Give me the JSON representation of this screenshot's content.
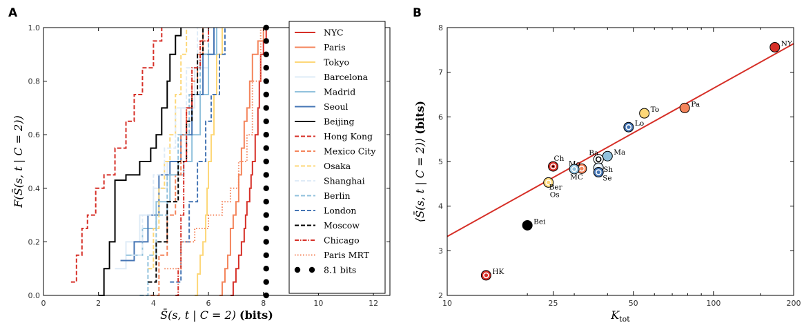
{
  "panels": {
    "a": "A",
    "b": "B"
  },
  "chart_data": [
    {
      "type": "line",
      "panel": "A",
      "xlabel_main": "S̄(s, t | C = 2)",
      "xlabel_unit": "(bits)",
      "ylabel": "F(S̄(s, t | C = 2))",
      "xlim": [
        0,
        12.6
      ],
      "ylim": [
        0,
        1.0
      ],
      "xticks": [
        "0",
        "2",
        "4",
        "6",
        "8",
        "10",
        "12"
      ],
      "yticks": [
        "0.0",
        "0.2",
        "0.4",
        "0.6",
        "0.8",
        "1.0"
      ],
      "legend_position": "inside-right",
      "series": [
        {
          "name": "NYC",
          "color": "#d62f27",
          "dash": "solid",
          "x": [
            6.8,
            6.9,
            7.0,
            7.1,
            7.2,
            7.3,
            7.35,
            7.4,
            7.5,
            7.55,
            7.6,
            7.7,
            7.8,
            7.85,
            7.9,
            8.0,
            8.1
          ],
          "y": [
            0,
            0.05,
            0.1,
            0.15,
            0.2,
            0.25,
            0.3,
            0.35,
            0.4,
            0.45,
            0.5,
            0.6,
            0.7,
            0.8,
            0.9,
            0.95,
            1.0
          ]
        },
        {
          "name": "Paris",
          "color": "#f4845b",
          "dash": "solid",
          "x": [
            6.4,
            6.5,
            6.6,
            6.7,
            6.8,
            6.9,
            7.0,
            7.1,
            7.2,
            7.3,
            7.4,
            7.5,
            7.6,
            7.8,
            8.0
          ],
          "y": [
            0,
            0.05,
            0.1,
            0.15,
            0.25,
            0.3,
            0.35,
            0.45,
            0.55,
            0.65,
            0.7,
            0.8,
            0.9,
            0.95,
            1.0
          ]
        },
        {
          "name": "Tokyo",
          "color": "#fdd777",
          "dash": "solid",
          "x": [
            5.5,
            5.6,
            5.7,
            5.8,
            5.9,
            5.95,
            6.0,
            6.1,
            6.2,
            6.3,
            6.5
          ],
          "y": [
            0,
            0.08,
            0.15,
            0.2,
            0.3,
            0.4,
            0.5,
            0.6,
            0.75,
            0.9,
            1.0
          ]
        },
        {
          "name": "Barcelona",
          "color": "#deebf7",
          "dash": "solid",
          "x": [
            2.6,
            3.0,
            3.5,
            4.0,
            4.5,
            5.0,
            5.5,
            6.0
          ],
          "y": [
            0.1,
            0.2,
            0.3,
            0.4,
            0.5,
            0.7,
            0.85,
            1.0
          ]
        },
        {
          "name": "Madrid",
          "color": "#91c1dc",
          "dash": "solid",
          "x": [
            3.0,
            3.6,
            4.1,
            4.6,
            5.1,
            5.4,
            5.7,
            6.0,
            6.3
          ],
          "y": [
            0.15,
            0.25,
            0.35,
            0.45,
            0.5,
            0.6,
            0.75,
            0.9,
            1.0
          ]
        },
        {
          "name": "Seoul",
          "color": "#4575b4",
          "dash": "solid",
          "x": [
            2.8,
            3.3,
            3.8,
            4.2,
            4.6,
            5.0,
            5.4,
            5.8,
            6.2
          ],
          "y": [
            0.13,
            0.2,
            0.3,
            0.45,
            0.5,
            0.6,
            0.75,
            0.9,
            1.0
          ]
        },
        {
          "name": "Beijing",
          "color": "#000000",
          "dash": "solid",
          "x": [
            2.0,
            2.2,
            2.4,
            2.6,
            3.0,
            3.5,
            3.9,
            4.1,
            4.3,
            4.5,
            4.6,
            4.8,
            5.0
          ],
          "y": [
            0,
            0.1,
            0.2,
            0.43,
            0.45,
            0.5,
            0.55,
            0.6,
            0.7,
            0.8,
            0.9,
            0.97,
            1.0
          ]
        },
        {
          "name": "Hong Kong",
          "color": "#d62f27",
          "dash": "dashed",
          "x": [
            1.0,
            1.2,
            1.4,
            1.6,
            1.9,
            2.2,
            2.6,
            3.0,
            3.3,
            3.6,
            4.0,
            4.3
          ],
          "y": [
            0.05,
            0.15,
            0.25,
            0.3,
            0.4,
            0.45,
            0.55,
            0.65,
            0.75,
            0.85,
            0.95,
            1.0
          ]
        },
        {
          "name": "Mexico City",
          "color": "#f4845b",
          "dash": "dashed",
          "x": [
            3.9,
            4.2,
            4.5,
            4.8,
            5.0,
            5.2,
            5.4,
            5.6,
            5.8
          ],
          "y": [
            0,
            0.15,
            0.3,
            0.45,
            0.6,
            0.7,
            0.8,
            0.9,
            1.0
          ]
        },
        {
          "name": "Osaka",
          "color": "#fdd777",
          "dash": "dashed",
          "x": [
            3.8,
            4.0,
            4.2,
            4.4,
            4.6,
            4.8,
            5.0,
            5.2
          ],
          "y": [
            0.1,
            0.25,
            0.4,
            0.5,
            0.6,
            0.75,
            0.9,
            1.0
          ]
        },
        {
          "name": "Shanghai",
          "color": "#deebf7",
          "dash": "dashed",
          "x": [
            3.2,
            3.6,
            4.0,
            4.4,
            4.8,
            5.2,
            5.6
          ],
          "y": [
            0.15,
            0.3,
            0.45,
            0.55,
            0.7,
            0.85,
            1.0
          ]
        },
        {
          "name": "Berlin",
          "color": "#91c1dc",
          "dash": "dashed",
          "x": [
            3.5,
            3.8,
            4.1,
            4.5,
            4.9,
            5.3,
            5.7,
            6.0
          ],
          "y": [
            0,
            0.15,
            0.3,
            0.45,
            0.6,
            0.75,
            0.9,
            1.0
          ]
        },
        {
          "name": "London",
          "color": "#4575b4",
          "dash": "dashed",
          "x": [
            4.6,
            5.0,
            5.3,
            5.6,
            5.9,
            6.1,
            6.4,
            6.6
          ],
          "y": [
            0.05,
            0.2,
            0.35,
            0.5,
            0.65,
            0.75,
            0.9,
            1.0
          ]
        },
        {
          "name": "Moscow",
          "color": "#000000",
          "dash": "dashed",
          "x": [
            3.8,
            4.1,
            4.5,
            4.9,
            5.2,
            5.4,
            5.6,
            5.8
          ],
          "y": [
            0.05,
            0.2,
            0.35,
            0.5,
            0.65,
            0.75,
            0.9,
            1.0
          ]
        },
        {
          "name": "Chicago",
          "color": "#d62f27",
          "dash": "dashdot",
          "x": [
            4.8,
            4.9,
            5.0,
            5.1,
            5.2,
            5.4,
            5.7,
            6.0
          ],
          "y": [
            0,
            0.1,
            0.3,
            0.5,
            0.7,
            0.85,
            0.95,
            1.0
          ]
        },
        {
          "name": "Paris MRT",
          "color": "#f4845b",
          "dash": "dotted",
          "x": [
            4.4,
            5.0,
            5.5,
            6.0,
            6.5,
            6.8,
            7.1,
            7.4,
            7.6,
            7.9
          ],
          "y": [
            0.1,
            0.2,
            0.25,
            0.3,
            0.35,
            0.4,
            0.5,
            0.6,
            0.8,
            1.0
          ]
        },
        {
          "name": "8.1 bits",
          "color": "#000000",
          "dash": "dots",
          "x": [
            8.1,
            8.1
          ],
          "y": [
            0,
            1.0
          ]
        }
      ]
    },
    {
      "type": "scatter",
      "panel": "B",
      "xlabel": "K_tot",
      "ylabel": "⟨S̄(s, t | C = 2)⟩ (bits)",
      "xscale": "log",
      "xlim": [
        10,
        200
      ],
      "ylim": [
        2,
        8
      ],
      "xticks": [
        {
          "v": 10,
          "label": "10"
        },
        {
          "v": 25,
          "label": "25"
        },
        {
          "v": 50,
          "label": "50"
        },
        {
          "v": 100,
          "label": "100"
        },
        {
          "v": 200,
          "label": "200"
        }
      ],
      "yticks": [
        "2",
        "3",
        "4",
        "5",
        "6",
        "7",
        "8"
      ],
      "fit_line": {
        "color": "#d62f27",
        "x": [
          10,
          200
        ],
        "y": [
          3.32,
          7.64
        ]
      },
      "points": [
        {
          "label": "NY",
          "x": 170,
          "y": 7.56,
          "fill": "#d62f27",
          "ring": ""
        },
        {
          "label": "Pa",
          "x": 78,
          "y": 6.2,
          "fill": "#f4845b",
          "ring": ""
        },
        {
          "label": "To",
          "x": 55,
          "y": 6.08,
          "fill": "#fdd777",
          "ring": ""
        },
        {
          "label": "Lo",
          "x": 48,
          "y": 5.77,
          "fill": "#4575b4",
          "ring": "#ffffff"
        },
        {
          "label": "Ma",
          "x": 40,
          "y": 5.12,
          "fill": "#91c1dc",
          "ring": ""
        },
        {
          "label": "Ba",
          "x": 37,
          "y": 5.05,
          "fill": "#ffffff",
          "ring": "#000000",
          "edge": "#000000"
        },
        {
          "label": "Sh",
          "x": 37,
          "y": 4.86,
          "fill": "#deebf7",
          "ring": "#ffffff"
        },
        {
          "label": "Se",
          "x": 37,
          "y": 4.76,
          "fill": "#4575b4",
          "ring": "#ffffff"
        },
        {
          "label": "Mo",
          "x": 32,
          "y": 4.84,
          "fill": "#f4845b",
          "ring": "#ffffff"
        },
        {
          "label": "MC",
          "x": 30,
          "y": 4.83,
          "fill": "#91c1dc",
          "ring": "#ffffff"
        },
        {
          "label": "Ch",
          "x": 25,
          "y": 4.89,
          "fill": "#d62f27",
          "ring": "#ffffff",
          "center": "#000000"
        },
        {
          "label": "Ber",
          "x": 24,
          "y": 4.53,
          "fill": "#fdd777",
          "ring": "#ffffff"
        },
        {
          "label": "Os",
          "x": 24,
          "y": 4.53,
          "fill": "#fdd777",
          "ring": ""
        },
        {
          "label": "Bei",
          "x": 20,
          "y": 3.57,
          "fill": "#000000",
          "ring": ""
        },
        {
          "label": "HK",
          "x": 14,
          "y": 2.45,
          "fill": "#d62f27",
          "ring": "#ffffff"
        }
      ]
    }
  ]
}
